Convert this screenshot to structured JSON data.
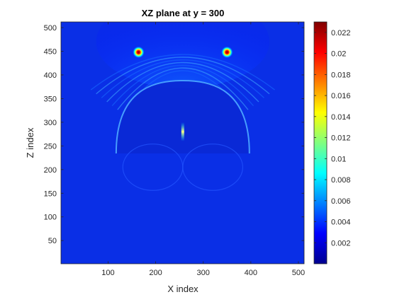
{
  "chart_data": {
    "type": "heatmap",
    "title": "XZ plane at y = 300",
    "xlabel": "X index",
    "ylabel": "Z index",
    "xlim": [
      1,
      512
    ],
    "ylim": [
      1,
      512
    ],
    "x_ticks": [
      100,
      200,
      300,
      400,
      500
    ],
    "y_ticks": [
      50,
      100,
      150,
      200,
      250,
      300,
      350,
      400,
      450,
      500
    ],
    "colormap": "jet",
    "color_range": [
      0,
      0.023
    ],
    "colorbar_ticks": [
      0.002,
      0.004,
      0.006,
      0.008,
      0.01,
      0.012,
      0.014,
      0.016,
      0.018,
      0.02,
      0.022
    ],
    "colorbar_tick_labels": [
      "0.002",
      "0.004",
      "0.006",
      "0.008",
      "0.01",
      "0.012",
      "0.014",
      "0.016",
      "0.018",
      "0.02",
      "0.022"
    ],
    "background_value": 0.0025,
    "hotspots": [
      {
        "x": 164,
        "z": 448,
        "value": 0.023
      },
      {
        "x": 350,
        "z": 448,
        "value": 0.023
      }
    ],
    "features": [
      {
        "type": "dome_boundary",
        "center_x": 257,
        "center_z": 248,
        "radius_x": 140,
        "radius_z": 140,
        "value": 0.006
      },
      {
        "type": "center_spike",
        "x": 257,
        "z_from": 260,
        "z_to": 300,
        "value": 0.012
      }
    ]
  }
}
